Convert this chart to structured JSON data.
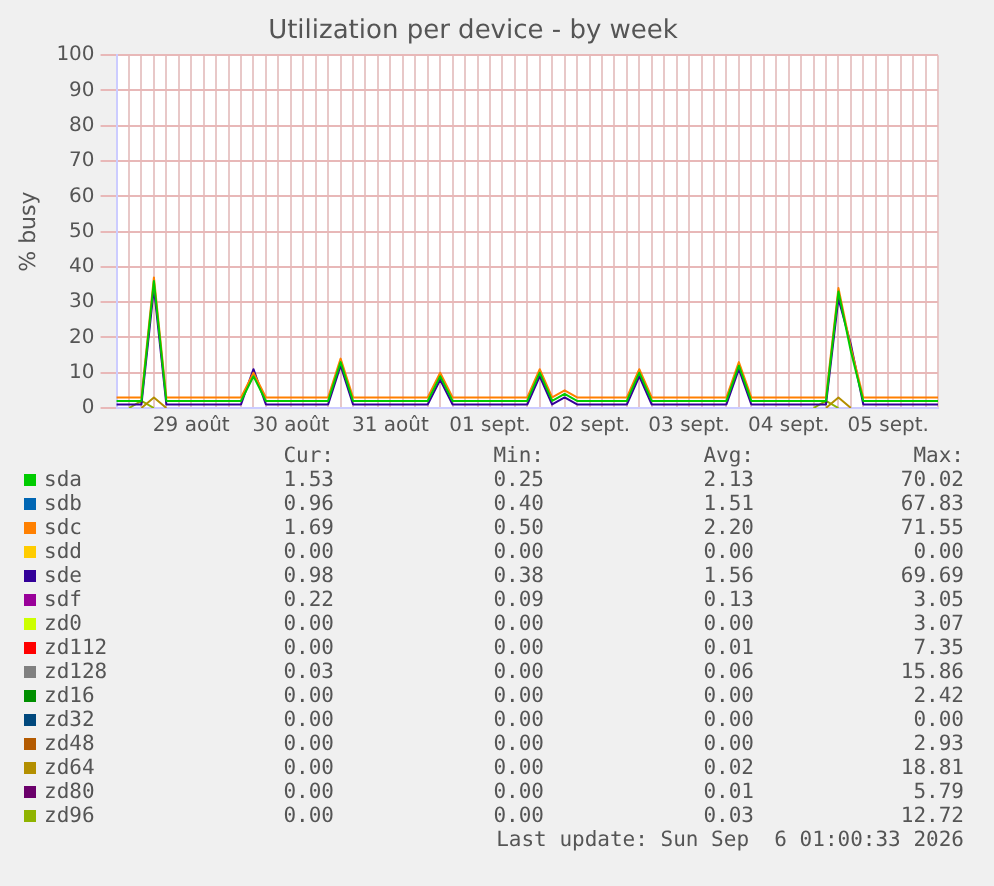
{
  "chart_data": {
    "type": "line",
    "title": "Utilization per device - by week",
    "ylabel": "% busy",
    "categories": [
      null,
      null,
      null,
      null,
      null,
      null,
      "29 août",
      null,
      null,
      null,
      null,
      null,
      null,
      null,
      "30 août",
      null,
      null,
      null,
      null,
      null,
      null,
      null,
      "31 août",
      null,
      null,
      null,
      null,
      null,
      null,
      null,
      "01 sept.",
      null,
      null,
      null,
      null,
      null,
      null,
      null,
      "02 sept.",
      null,
      null,
      null,
      null,
      null,
      null,
      null,
      "03 sept.",
      null,
      null,
      null,
      null,
      null,
      null,
      null,
      "04 sept.",
      null,
      null,
      null,
      null,
      null,
      null,
      null,
      "05 sept.",
      null,
      null,
      null,
      null
    ],
    "ylim": [
      0,
      100
    ],
    "yticks": [
      0,
      10,
      20,
      30,
      40,
      50,
      60,
      70,
      80,
      90,
      100
    ],
    "grid": true,
    "legend": "bottom",
    "series": [
      {
        "name": "sda",
        "color": "#00cc00",
        "values": [
          2,
          2,
          2,
          36,
          2,
          2,
          2,
          2,
          2,
          2,
          2,
          9,
          2,
          2,
          2,
          2,
          2,
          2,
          13,
          2,
          2,
          2,
          2,
          2,
          2,
          2,
          9,
          2,
          2,
          2,
          2,
          2,
          2,
          2,
          10,
          2,
          4,
          2,
          2,
          2,
          2,
          2,
          10,
          2,
          2,
          2,
          2,
          2,
          2,
          2,
          12,
          2,
          2,
          2,
          2,
          2,
          2,
          2,
          33,
          16,
          2,
          2,
          2,
          2,
          2,
          2,
          2
        ]
      },
      {
        "name": "sdb",
        "color": "#0066b3",
        "values": [
          null,
          null,
          null,
          null,
          null,
          null,
          null,
          null,
          null,
          null,
          null,
          null,
          null,
          null,
          null,
          null,
          null,
          null,
          null,
          null,
          null,
          null,
          null,
          null,
          null,
          null,
          null,
          null,
          null,
          null,
          null,
          null,
          null,
          null,
          null,
          null,
          null,
          null,
          null,
          null,
          null,
          null,
          null,
          null,
          null,
          null,
          null,
          null,
          null,
          null,
          null,
          null,
          null,
          null,
          null,
          null,
          null,
          null,
          null,
          null,
          null,
          null,
          null,
          null,
          null,
          null,
          null
        ]
      },
      {
        "name": "sdc",
        "color": "#ff8000",
        "values": [
          3,
          3,
          3,
          37,
          3,
          3,
          3,
          3,
          3,
          3,
          3,
          10,
          3,
          3,
          3,
          3,
          3,
          3,
          14,
          3,
          3,
          3,
          3,
          3,
          3,
          3,
          10,
          3,
          3,
          3,
          3,
          3,
          3,
          3,
          11,
          3,
          5,
          3,
          3,
          3,
          3,
          3,
          11,
          3,
          3,
          3,
          3,
          3,
          3,
          3,
          13,
          3,
          3,
          3,
          3,
          3,
          3,
          3,
          34,
          17,
          3,
          3,
          3,
          3,
          3,
          3,
          3
        ]
      },
      {
        "name": "sdd",
        "color": "#ffcc00",
        "values": [
          null,
          null,
          null,
          null,
          null,
          null,
          null,
          null,
          null,
          null,
          null,
          null,
          null,
          null,
          null,
          null,
          null,
          null,
          null,
          null,
          null,
          null,
          null,
          null,
          null,
          null,
          null,
          null,
          null,
          null,
          null,
          null,
          null,
          null,
          null,
          null,
          null,
          null,
          null,
          null,
          null,
          null,
          null,
          null,
          null,
          null,
          null,
          null,
          null,
          null,
          null,
          null,
          null,
          null,
          null,
          null,
          null,
          null,
          null,
          null,
          null,
          null,
          null,
          null,
          null,
          null,
          null
        ]
      },
      {
        "name": "sde",
        "color": "#330099",
        "values": [
          1,
          1,
          1,
          34,
          1,
          1,
          1,
          1,
          1,
          1,
          1,
          11,
          1,
          1,
          1,
          1,
          1,
          1,
          12,
          1,
          1,
          1,
          1,
          1,
          1,
          1,
          8,
          1,
          1,
          1,
          1,
          1,
          1,
          1,
          9,
          1,
          3,
          1,
          1,
          1,
          1,
          1,
          9,
          1,
          1,
          1,
          1,
          1,
          1,
          1,
          11,
          1,
          1,
          1,
          1,
          1,
          1,
          1,
          31,
          18,
          1,
          1,
          1,
          1,
          1,
          1,
          1
        ]
      },
      {
        "name": "sdf",
        "color": "#990099",
        "values": [
          null,
          null,
          null,
          null,
          null,
          null,
          null,
          null,
          null,
          null,
          null,
          null,
          null,
          null,
          null,
          null,
          null,
          null,
          null,
          null,
          null,
          null,
          null,
          null,
          null,
          null,
          null,
          null,
          null,
          null,
          null,
          null,
          null,
          null,
          null,
          null,
          null,
          null,
          null,
          null,
          null,
          null,
          null,
          null,
          null,
          null,
          null,
          null,
          null,
          null,
          null,
          null,
          null,
          null,
          null,
          null,
          null,
          null,
          null,
          null,
          null,
          null,
          null,
          null,
          null,
          null,
          null
        ]
      },
      {
        "name": "zd0",
        "color": "#ccff00",
        "values": [
          null,
          null,
          null,
          null,
          null,
          null,
          null,
          null,
          null,
          null,
          null,
          null,
          null,
          null,
          null,
          null,
          null,
          null,
          null,
          null,
          null,
          null,
          null,
          null,
          null,
          null,
          null,
          null,
          null,
          null,
          null,
          null,
          null,
          null,
          null,
          null,
          null,
          null,
          null,
          null,
          null,
          null,
          null,
          null,
          null,
          null,
          null,
          null,
          null,
          null,
          null,
          null,
          null,
          null,
          null,
          null,
          null,
          null,
          null,
          null,
          null,
          null,
          null,
          null,
          null,
          null,
          null
        ]
      },
      {
        "name": "zd112",
        "color": "#ff0000",
        "values": [
          null,
          null,
          null,
          null,
          null,
          null,
          null,
          null,
          null,
          null,
          null,
          null,
          null,
          null,
          null,
          null,
          null,
          null,
          null,
          null,
          null,
          null,
          null,
          null,
          null,
          null,
          null,
          null,
          null,
          null,
          null,
          null,
          null,
          null,
          null,
          null,
          null,
          null,
          null,
          null,
          null,
          null,
          null,
          null,
          null,
          null,
          null,
          null,
          null,
          null,
          null,
          null,
          null,
          null,
          null,
          null,
          null,
          null,
          null,
          null,
          null,
          null,
          null,
          null,
          null,
          null,
          null
        ]
      },
      {
        "name": "zd128",
        "color": "#808080",
        "values": [
          null,
          null,
          null,
          null,
          null,
          null,
          null,
          null,
          null,
          null,
          null,
          null,
          null,
          null,
          null,
          null,
          null,
          null,
          null,
          null,
          null,
          null,
          null,
          null,
          null,
          null,
          null,
          null,
          null,
          null,
          null,
          null,
          null,
          null,
          null,
          null,
          null,
          null,
          null,
          null,
          null,
          null,
          null,
          null,
          null,
          null,
          null,
          null,
          null,
          null,
          null,
          null,
          null,
          null,
          null,
          null,
          null,
          null,
          null,
          null,
          null,
          null,
          null,
          null,
          null,
          null,
          null
        ]
      },
      {
        "name": "zd16",
        "color": "#008f00",
        "values": [
          null,
          null,
          null,
          null,
          null,
          null,
          null,
          null,
          null,
          null,
          null,
          null,
          null,
          null,
          null,
          null,
          null,
          null,
          null,
          null,
          null,
          null,
          null,
          null,
          null,
          null,
          null,
          null,
          null,
          null,
          null,
          null,
          null,
          null,
          null,
          null,
          null,
          null,
          null,
          null,
          null,
          null,
          null,
          null,
          null,
          null,
          null,
          null,
          null,
          null,
          null,
          null,
          null,
          null,
          null,
          null,
          null,
          null,
          null,
          null,
          null,
          null,
          null,
          null,
          null,
          null,
          null
        ]
      },
      {
        "name": "zd32",
        "color": "#00487d",
        "values": [
          null,
          null,
          null,
          null,
          null,
          null,
          null,
          null,
          null,
          null,
          null,
          null,
          null,
          null,
          null,
          null,
          null,
          null,
          null,
          null,
          null,
          null,
          null,
          null,
          null,
          null,
          null,
          null,
          null,
          null,
          null,
          null,
          null,
          null,
          null,
          null,
          null,
          null,
          null,
          null,
          null,
          null,
          null,
          null,
          null,
          null,
          null,
          null,
          null,
          null,
          null,
          null,
          null,
          null,
          null,
          null,
          null,
          null,
          null,
          null,
          null,
          null,
          null,
          null,
          null,
          null,
          null
        ]
      },
      {
        "name": "zd48",
        "color": "#b35a00",
        "values": [
          null,
          null,
          null,
          null,
          null,
          null,
          null,
          null,
          null,
          null,
          null,
          null,
          null,
          null,
          null,
          null,
          null,
          null,
          null,
          null,
          null,
          null,
          null,
          null,
          null,
          null,
          null,
          null,
          null,
          null,
          null,
          null,
          null,
          null,
          null,
          null,
          null,
          null,
          null,
          null,
          null,
          null,
          null,
          null,
          null,
          null,
          null,
          null,
          null,
          null,
          null,
          null,
          null,
          null,
          null,
          null,
          null,
          null,
          null,
          null,
          null,
          null,
          null,
          null,
          null,
          null,
          null
        ]
      },
      {
        "name": "zd64",
        "color": "#b38f00",
        "values": [
          null,
          null,
          0,
          3,
          0,
          null,
          null,
          null,
          null,
          null,
          null,
          null,
          null,
          null,
          null,
          null,
          null,
          null,
          null,
          null,
          null,
          null,
          null,
          null,
          null,
          null,
          null,
          null,
          null,
          null,
          null,
          null,
          null,
          null,
          null,
          null,
          null,
          null,
          null,
          null,
          null,
          null,
          null,
          null,
          null,
          null,
          null,
          null,
          null,
          null,
          null,
          null,
          null,
          null,
          null,
          null,
          null,
          0,
          3,
          0,
          null,
          null,
          null,
          null,
          null,
          null,
          null
        ]
      },
      {
        "name": "zd80",
        "color": "#6b006b",
        "values": [
          null,
          null,
          null,
          null,
          null,
          null,
          null,
          null,
          null,
          null,
          null,
          null,
          null,
          null,
          null,
          null,
          null,
          null,
          null,
          null,
          null,
          null,
          null,
          null,
          null,
          null,
          null,
          null,
          null,
          null,
          null,
          null,
          null,
          null,
          null,
          null,
          null,
          null,
          null,
          null,
          null,
          null,
          null,
          null,
          null,
          null,
          null,
          null,
          null,
          null,
          null,
          null,
          null,
          null,
          null,
          null,
          null,
          null,
          null,
          null,
          null,
          null,
          null,
          null,
          null,
          null,
          null
        ]
      },
      {
        "name": "zd96",
        "color": "#8fb300",
        "values": [
          null,
          0,
          2,
          0,
          null,
          null,
          null,
          null,
          null,
          null,
          null,
          null,
          null,
          null,
          null,
          null,
          null,
          null,
          null,
          null,
          null,
          null,
          null,
          null,
          null,
          null,
          null,
          null,
          null,
          null,
          null,
          null,
          null,
          null,
          null,
          null,
          null,
          null,
          null,
          null,
          null,
          null,
          null,
          null,
          null,
          null,
          null,
          null,
          null,
          null,
          null,
          null,
          null,
          null,
          null,
          null,
          0,
          2,
          0,
          null,
          null,
          null,
          null,
          null,
          null,
          null,
          null
        ]
      }
    ],
    "annotations": [
      "Cur:",
      "Min:",
      "Avg:",
      "Max:",
      "1.53",
      "0.25",
      "2.13",
      "70.02",
      "0.96",
      "0.40",
      "1.51",
      "67.83",
      "1.69",
      "0.50",
      "2.20",
      "71.55",
      "0.00",
      "0.00",
      "0.00",
      "0.00",
      "0.98",
      "0.38",
      "1.56",
      "69.69",
      "0.22",
      "0.09",
      "0.13",
      "3.05",
      "0.00",
      "0.00",
      "0.00",
      "3.07",
      "0.00",
      "0.00",
      "0.01",
      "7.35",
      "0.03",
      "0.00",
      "0.06",
      "15.86",
      "0.00",
      "0.00",
      "0.00",
      "2.42",
      "0.00",
      "0.00",
      "0.00",
      "0.00",
      "0.00",
      "0.00",
      "0.00",
      "2.93",
      "0.00",
      "0.00",
      "0.02",
      "18.81",
      "0.00",
      "0.00",
      "0.01",
      "5.79",
      "0.00",
      "0.00",
      "0.03",
      "12.72",
      "Last update: Sun Sep  6 01:00:33 2026"
    ]
  }
}
